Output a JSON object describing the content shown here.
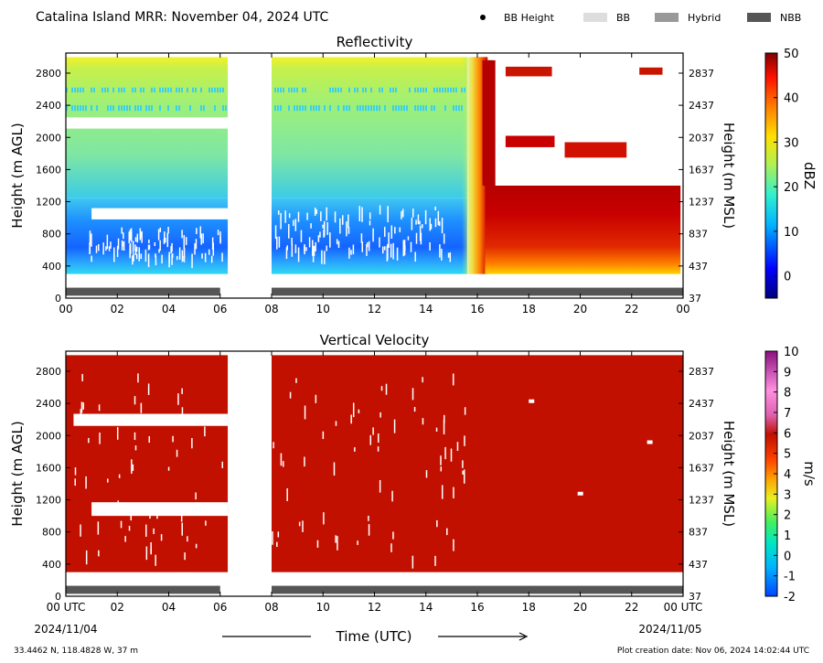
{
  "header": {
    "title": "Catalina Island MRR:  November 04, 2024 UTC",
    "legend": [
      {
        "label": "BB Height",
        "marker": "dot",
        "color": "#000000"
      },
      {
        "label": "BB",
        "marker": "swatch",
        "color": "#dddddd"
      },
      {
        "label": "Hybrid",
        "marker": "swatch",
        "color": "#999999"
      },
      {
        "label": "NBB",
        "marker": "swatch",
        "color": "#555555"
      }
    ]
  },
  "footer": {
    "location": "33.4462 N, 118.4828 W, 37 m",
    "creation": "Plot creation date: Nov 06, 2024 14:02:44 UTC",
    "xlabel": "Time (UTC)",
    "start_date": "2024/11/04",
    "end_date": "2024/11/05"
  },
  "chart_data": [
    {
      "type": "heatmap",
      "title": "Reflectivity",
      "ylabel": "Height (m AGL)",
      "ylabel_right": "Height (m MSL)",
      "x_ticks": [
        "00",
        "02",
        "04",
        "06",
        "08",
        "10",
        "12",
        "14",
        "16",
        "18",
        "20",
        "22",
        "00"
      ],
      "y_ticks": [
        "0",
        "400",
        "800",
        "1200",
        "1600",
        "2000",
        "2400",
        "2800"
      ],
      "y_ticks_right": [
        "37",
        "437",
        "837",
        "1237",
        "1637",
        "2037",
        "2437",
        "2837"
      ],
      "xlim": [
        0,
        24
      ],
      "ylim": [
        0,
        3050
      ],
      "colorbar": {
        "label": "dBZ",
        "min": -5,
        "max": 50,
        "ticks": [
          "0",
          "10",
          "20",
          "30",
          "40",
          "50"
        ],
        "colormap": "jet-like"
      },
      "data_gap_hours": [
        6.3,
        8.0
      ],
      "typical_dbz": {
        "00-06_upper": 20,
        "00-06_lower": 8,
        "08-15.5_upper": 18,
        "08-15.5_lower": 5,
        "16-24_rain": 45
      },
      "bright_band_bar": [
        {
          "start": 0.0,
          "end": 6.0,
          "class": "NBB"
        },
        {
          "start": 8.0,
          "end": 24.0,
          "class": "NBB"
        }
      ]
    },
    {
      "type": "heatmap",
      "title": "Vertical Velocity",
      "ylabel": "Height (m AGL)",
      "ylabel_right": "Height (m MSL)",
      "x_ticks": [
        "00 UTC",
        "02",
        "04",
        "06",
        "08",
        "10",
        "12",
        "14",
        "16",
        "18",
        "20",
        "22",
        "00 UTC"
      ],
      "y_ticks": [
        "0",
        "400",
        "800",
        "1200",
        "1600",
        "2000",
        "2400",
        "2800"
      ],
      "y_ticks_right": [
        "37",
        "437",
        "837",
        "1237",
        "1637",
        "2037",
        "2437",
        "2837"
      ],
      "xlim": [
        0,
        24
      ],
      "ylim": [
        0,
        3050
      ],
      "colorbar": {
        "label": "m/s",
        "min": -2,
        "max": 10,
        "ticks": [
          "-2",
          "-1",
          "0",
          "1",
          "2",
          "3",
          "4",
          "5",
          "6",
          "7",
          "8",
          "9",
          "10"
        ],
        "colormap": "jet-like"
      },
      "data_gap_hours": [
        6.3,
        8.0
      ],
      "dominant_value_ms": 6,
      "bright_band_bar": [
        {
          "start": 0.0,
          "end": 6.0,
          "class": "NBB"
        },
        {
          "start": 8.0,
          "end": 24.0,
          "class": "NBB"
        }
      ]
    }
  ]
}
